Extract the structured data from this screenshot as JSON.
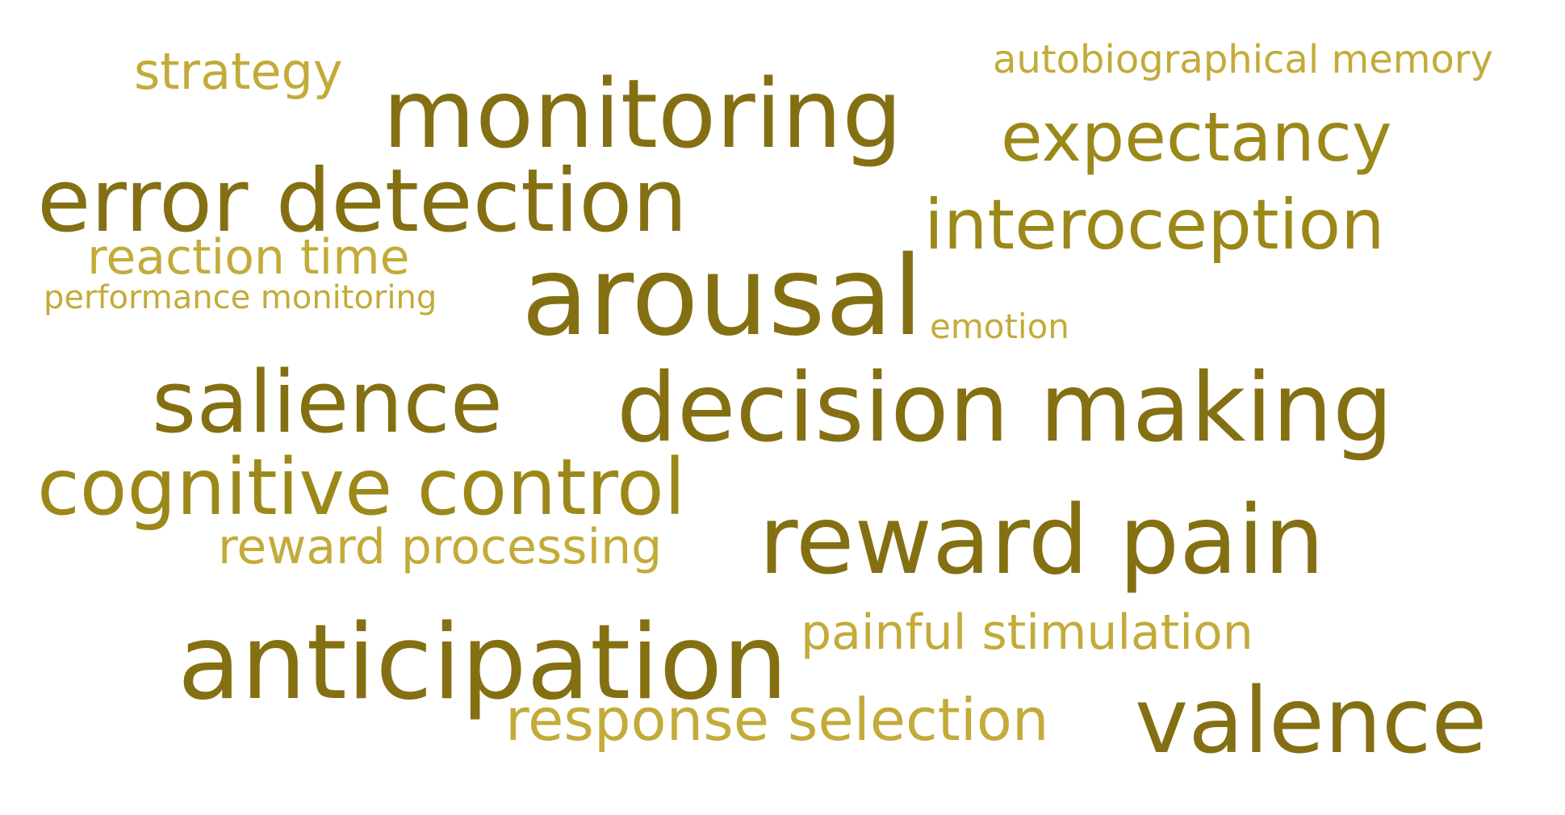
{
  "colors": {
    "dark": "#847012",
    "mid": "#9c8819",
    "light": "#c3ab3a",
    "background": "#ffffff"
  },
  "words": {
    "strategy": "strategy",
    "autobiographical_memory": "autobiographical memory",
    "monitoring": "monitoring",
    "expectancy": "expectancy",
    "error_detection": "error detection",
    "interoception": "interoception",
    "reaction_time": "reaction time",
    "performance_monitoring": "performance monitoring",
    "arousal": "arousal",
    "emotion": "emotion",
    "salience": "salience",
    "decision_making": "decision making",
    "cognitive_control": "cognitive control",
    "reward_processing": "reward processing",
    "reward_pain": "reward pain",
    "painful_stimulation": "painful stimulation",
    "anticipation": "anticipation",
    "valence": "valence",
    "response_selection": "response selection"
  }
}
